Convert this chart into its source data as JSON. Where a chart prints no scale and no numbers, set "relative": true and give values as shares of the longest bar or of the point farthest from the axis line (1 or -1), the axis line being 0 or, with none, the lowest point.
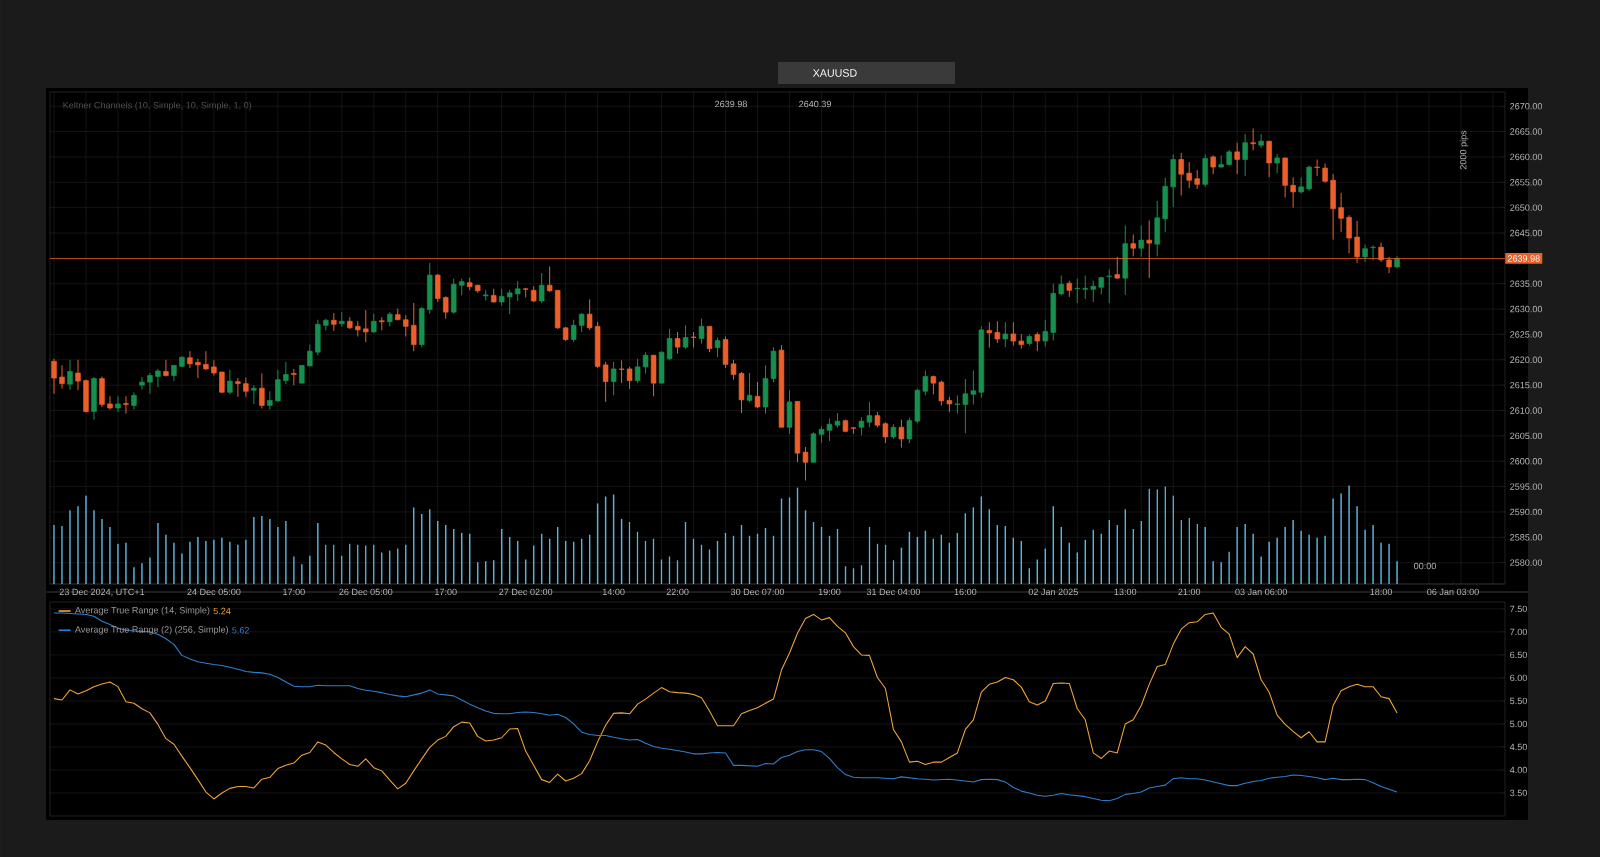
{
  "chart_data": [
    {
      "type": "candlestick",
      "title": "XAUUSD",
      "categories": [
        null,
        null,
        null,
        null,
        null,
        null,
        "23 Dec 2024, UTC+1",
        null,
        null,
        null,
        null,
        null,
        null,
        null,
        null,
        null,
        null,
        null,
        null,
        null,
        "24 Dec 05:00",
        null,
        null,
        null,
        null,
        null,
        null,
        null,
        null,
        null,
        "17:00",
        null,
        null,
        null,
        null,
        null,
        null,
        null,
        null,
        "26 Dec 05:00",
        null,
        null,
        null,
        null,
        null,
        null,
        null,
        null,
        null,
        "17:00",
        null,
        null,
        null,
        null,
        null,
        null,
        null,
        null,
        null,
        "27 Dec 02:00",
        null,
        null,
        null,
        null,
        null,
        null,
        null,
        null,
        null,
        null,
        "14:00",
        null,
        null,
        null,
        null,
        null,
        null,
        null,
        "22:00",
        null,
        null,
        null,
        null,
        null,
        null,
        null,
        null,
        null,
        "30 Dec 07:00",
        null,
        null,
        null,
        null,
        null,
        null,
        null,
        null,
        "19:00",
        null,
        null,
        null,
        null,
        null,
        null,
        null,
        "31 Dec 04:00",
        null,
        null,
        null,
        null,
        null,
        null,
        null,
        null,
        "16:00",
        null,
        null,
        null,
        null,
        null,
        null,
        null,
        null,
        null,
        null,
        "02 Jan 2025",
        null,
        null,
        null,
        null,
        null,
        null,
        null,
        null,
        "13:00",
        null,
        null,
        null,
        null,
        null,
        null,
        null,
        "21:00",
        null,
        null,
        null,
        null,
        null,
        null,
        null,
        null,
        "03 Jan 06:00",
        null,
        null,
        null,
        null,
        null,
        null,
        null,
        null,
        null,
        null,
        null,
        null,
        null,
        null,
        "18:00",
        null,
        null,
        null,
        null,
        null,
        null,
        null,
        null,
        "06 Jan 03:00",
        null,
        null,
        null,
        null,
        null,
        null
      ],
      "ohlc": [
        [
          2619.7,
          2620.2,
          2613.3,
          2616.4
        ],
        [
          2616.6,
          2618.9,
          2614.3,
          2615.3
        ],
        [
          2615.2,
          2620.0,
          2614.1,
          2617.7
        ],
        [
          2617.4,
          2620.0,
          2614.0,
          2615.8
        ],
        [
          2615.9,
          2616.1,
          2609.6,
          2609.8
        ],
        [
          2609.8,
          2616.6,
          2608.2,
          2616.3
        ],
        [
          2616.3,
          2616.7,
          2610.7,
          2611.2
        ],
        [
          2611.3,
          2612.8,
          2610.2,
          2610.5
        ],
        [
          2610.5,
          2612.8,
          2609.7,
          2611.3
        ],
        [
          2611.4,
          2612.8,
          2609.4,
          2611.2
        ],
        [
          2611.0,
          2613.6,
          2610.2,
          2613.0
        ],
        [
          2615.0,
          2616.6,
          2614.1,
          2615.6
        ],
        [
          2615.6,
          2617.4,
          2613.3,
          2616.9
        ],
        [
          2616.7,
          2618.2,
          2614.6,
          2617.8
        ],
        [
          2617.7,
          2620.0,
          2616.7,
          2616.9
        ],
        [
          2616.9,
          2618.9,
          2615.8,
          2618.9
        ],
        [
          2618.7,
          2620.7,
          2618.6,
          2620.5
        ],
        [
          2620.4,
          2621.7,
          2618.4,
          2619.2
        ],
        [
          2619.5,
          2620.2,
          2616.4,
          2619.0
        ],
        [
          2619.1,
          2621.7,
          2618.0,
          2618.2
        ],
        [
          2618.6,
          2619.9,
          2616.9,
          2617.4
        ],
        [
          2617.6,
          2617.6,
          2613.4,
          2613.6
        ],
        [
          2613.6,
          2618.0,
          2613.2,
          2615.8
        ],
        [
          2615.7,
          2616.4,
          2612.7,
          2615.3
        ],
        [
          2615.3,
          2616.5,
          2612.7,
          2613.8
        ],
        [
          2614.0,
          2615.0,
          2611.3,
          2614.4
        ],
        [
          2614.4,
          2617.3,
          2610.4,
          2611.0
        ],
        [
          2611.0,
          2613.8,
          2610.2,
          2612.0
        ],
        [
          2611.9,
          2618.0,
          2611.7,
          2616.1
        ],
        [
          2615.9,
          2619.6,
          2615.2,
          2617.1
        ],
        [
          2617.3,
          2618.2,
          2615.0,
          2617.1
        ],
        [
          2615.4,
          2618.9,
          2615.3,
          2618.9
        ],
        [
          2618.8,
          2623.0,
          2618.7,
          2621.7
        ],
        [
          2621.5,
          2627.9,
          2620.9,
          2627.0
        ],
        [
          2626.8,
          2628.1,
          2625.8,
          2627.8
        ],
        [
          2627.8,
          2629.2,
          2625.7,
          2627.0
        ],
        [
          2627.1,
          2629.4,
          2626.5,
          2627.6
        ],
        [
          2627.6,
          2628.4,
          2626.1,
          2626.3
        ],
        [
          2626.6,
          2627.6,
          2624.6,
          2625.9
        ],
        [
          2626.1,
          2629.8,
          2623.5,
          2625.5
        ],
        [
          2625.5,
          2629.1,
          2625.3,
          2627.6
        ],
        [
          2627.7,
          2628.4,
          2625.8,
          2627.5
        ],
        [
          2627.5,
          2629.4,
          2626.6,
          2629.0
        ],
        [
          2628.9,
          2630.1,
          2627.8,
          2627.9
        ],
        [
          2627.9,
          2628.8,
          2624.6,
          2626.6
        ],
        [
          2626.8,
          2631.2,
          2621.7,
          2623.0
        ],
        [
          2623.0,
          2630.4,
          2622.5,
          2630.1
        ],
        [
          2629.9,
          2639.1,
          2629.1,
          2636.7
        ],
        [
          2636.7,
          2636.9,
          2631.4,
          2632.1
        ],
        [
          2632.3,
          2632.5,
          2628.1,
          2629.4
        ],
        [
          2629.4,
          2636.0,
          2629.1,
          2634.9
        ],
        [
          2634.7,
          2636.0,
          2632.7,
          2635.4
        ],
        [
          2635.2,
          2636.2,
          2633.7,
          2634.4
        ],
        [
          2634.7,
          2634.8,
          2633.2,
          2633.6
        ],
        [
          2632.6,
          2633.8,
          2631.7,
          2632.8
        ],
        [
          2632.7,
          2634.0,
          2631.3,
          2631.4
        ],
        [
          2631.4,
          2634.0,
          2630.7,
          2632.5
        ],
        [
          2632.4,
          2633.8,
          2629.0,
          2633.2
        ],
        [
          2633.0,
          2635.5,
          2631.6,
          2634.0
        ],
        [
          2634.0,
          2634.2,
          2632.3,
          2633.9
        ],
        [
          2633.7,
          2634.5,
          2631.4,
          2631.6
        ],
        [
          2631.6,
          2637.1,
          2631.2,
          2634.7
        ],
        [
          2634.7,
          2638.4,
          2633.4,
          2633.6
        ],
        [
          2633.7,
          2633.7,
          2626.1,
          2626.3
        ],
        [
          2626.3,
          2626.5,
          2623.7,
          2624.0
        ],
        [
          2624.0,
          2627.9,
          2623.5,
          2626.8
        ],
        [
          2626.8,
          2629.2,
          2625.5,
          2629.0
        ],
        [
          2629.0,
          2631.9,
          2625.9,
          2626.3
        ],
        [
          2626.6,
          2627.5,
          2618.4,
          2618.7
        ],
        [
          2619.0,
          2619.6,
          2611.7,
          2615.7
        ],
        [
          2615.7,
          2619.6,
          2613.0,
          2618.2
        ],
        [
          2618.2,
          2619.9,
          2615.4,
          2618.1
        ],
        [
          2618.2,
          2618.6,
          2614.3,
          2615.9
        ],
        [
          2615.9,
          2620.2,
          2615.4,
          2618.6
        ],
        [
          2618.6,
          2621.5,
          2617.3,
          2620.9
        ],
        [
          2620.9,
          2620.9,
          2612.8,
          2615.4
        ],
        [
          2615.4,
          2621.7,
          2615.3,
          2621.5
        ],
        [
          2620.2,
          2626.1,
          2619.9,
          2624.2
        ],
        [
          2624.2,
          2625.5,
          2621.2,
          2622.5
        ],
        [
          2622.5,
          2626.8,
          2622.2,
          2624.4
        ],
        [
          2624.5,
          2625.5,
          2622.4,
          2624.4
        ],
        [
          2624.2,
          2628.1,
          2623.2,
          2626.6
        ],
        [
          2626.6,
          2626.6,
          2621.5,
          2622.2
        ],
        [
          2622.4,
          2624.4,
          2620.5,
          2623.8
        ],
        [
          2624.0,
          2624.6,
          2618.4,
          2619.1
        ],
        [
          2619.2,
          2620.0,
          2616.1,
          2617.1
        ],
        [
          2617.3,
          2617.6,
          2609.5,
          2612.1
        ],
        [
          2612.0,
          2617.4,
          2611.7,
          2613.0
        ],
        [
          2612.8,
          2615.6,
          2610.5,
          2610.7
        ],
        [
          2610.7,
          2618.9,
          2609.4,
          2616.3
        ],
        [
          2616.3,
          2622.5,
          2615.6,
          2621.7
        ],
        [
          2621.9,
          2622.9,
          2606.7,
          2606.7
        ],
        [
          2606.7,
          2614.0,
          2605.4,
          2611.7
        ],
        [
          2611.8,
          2611.8,
          2599.8,
          2601.6
        ],
        [
          2601.8,
          2602.8,
          2596.2,
          2599.8
        ],
        [
          2599.8,
          2605.7,
          2599.8,
          2605.4
        ],
        [
          2605.3,
          2606.9,
          2603.6,
          2606.3
        ],
        [
          2606.1,
          2608.4,
          2604.0,
          2607.3
        ],
        [
          2607.1,
          2609.5,
          2606.6,
          2607.9
        ],
        [
          2608.0,
          2608.2,
          2605.7,
          2605.9
        ],
        [
          2606.6,
          2606.7,
          2605.4,
          2606.5
        ],
        [
          2606.7,
          2608.7,
          2605.1,
          2607.9
        ],
        [
          2607.7,
          2611.7,
          2606.7,
          2609.0
        ],
        [
          2609.0,
          2609.7,
          2606.7,
          2607.1
        ],
        [
          2607.4,
          2607.7,
          2603.6,
          2604.8
        ],
        [
          2604.8,
          2607.3,
          2604.4,
          2606.7
        ],
        [
          2606.7,
          2608.2,
          2602.7,
          2604.4
        ],
        [
          2604.4,
          2608.6,
          2603.6,
          2608.0
        ],
        [
          2607.9,
          2614.3,
          2607.5,
          2614.0
        ],
        [
          2613.8,
          2617.9,
          2613.0,
          2616.7
        ],
        [
          2616.7,
          2616.9,
          2613.2,
          2615.4
        ],
        [
          2615.6,
          2615.9,
          2611.0,
          2611.9
        ],
        [
          2612.0,
          2612.7,
          2609.7,
          2611.3
        ],
        [
          2611.2,
          2613.0,
          2609.4,
          2611.3
        ],
        [
          2611.2,
          2616.2,
          2605.5,
          2613.3
        ],
        [
          2613.2,
          2617.9,
          2611.2,
          2613.9
        ],
        [
          2613.6,
          2626.6,
          2612.5,
          2625.9
        ],
        [
          2625.8,
          2627.4,
          2622.4,
          2625.3
        ],
        [
          2625.4,
          2627.6,
          2623.3,
          2624.1
        ],
        [
          2624.1,
          2627.4,
          2622.5,
          2625.1
        ],
        [
          2625.1,
          2627.4,
          2622.8,
          2623.7
        ],
        [
          2623.7,
          2625.1,
          2622.2,
          2623.0
        ],
        [
          2623.2,
          2625.0,
          2622.8,
          2624.6
        ],
        [
          2625.0,
          2625.4,
          2621.7,
          2623.7
        ],
        [
          2623.7,
          2627.9,
          2622.6,
          2625.6
        ],
        [
          2625.4,
          2635.0,
          2623.8,
          2633.1
        ],
        [
          2633.0,
          2636.6,
          2632.7,
          2634.9
        ],
        [
          2635.1,
          2635.6,
          2632.4,
          2633.7
        ],
        [
          2634.0,
          2636.0,
          2631.2,
          2634.1
        ],
        [
          2633.9,
          2636.6,
          2632.0,
          2634.1
        ],
        [
          2633.9,
          2635.6,
          2631.4,
          2634.5
        ],
        [
          2634.3,
          2636.4,
          2632.9,
          2636.2
        ],
        [
          2636.4,
          2637.8,
          2631.2,
          2636.5
        ],
        [
          2636.8,
          2640.3,
          2636.0,
          2636.1
        ],
        [
          2636.1,
          2646.5,
          2632.8,
          2642.9
        ],
        [
          2642.9,
          2644.7,
          2640.4,
          2642.0
        ],
        [
          2642.0,
          2646.5,
          2640.3,
          2643.6
        ],
        [
          2643.6,
          2647.5,
          2636.1,
          2643.0
        ],
        [
          2642.8,
          2651.3,
          2640.4,
          2648.0
        ],
        [
          2647.8,
          2655.9,
          2645.2,
          2654.2
        ],
        [
          2654.1,
          2660.5,
          2650.1,
          2659.5
        ],
        [
          2659.5,
          2660.8,
          2652.4,
          2656.6
        ],
        [
          2656.8,
          2659.0,
          2653.9,
          2655.4
        ],
        [
          2655.7,
          2657.4,
          2653.7,
          2654.6
        ],
        [
          2654.6,
          2660.5,
          2654.1,
          2659.7
        ],
        [
          2660.0,
          2660.3,
          2656.6,
          2658.0
        ],
        [
          2658.0,
          2660.3,
          2657.9,
          2658.5
        ],
        [
          2658.5,
          2661.4,
          2658.3,
          2661.0
        ],
        [
          2661.0,
          2662.8,
          2656.6,
          2659.5
        ],
        [
          2659.5,
          2664.5,
          2656.2,
          2662.8
        ],
        [
          2662.8,
          2665.6,
          2661.3,
          2662.6
        ],
        [
          2662.3,
          2664.5,
          2661.8,
          2663.1
        ],
        [
          2663.1,
          2663.1,
          2656.0,
          2658.8
        ],
        [
          2658.8,
          2660.6,
          2656.8,
          2659.8
        ],
        [
          2659.8,
          2659.8,
          2652.0,
          2654.4
        ],
        [
          2654.4,
          2656.0,
          2650.0,
          2653.1
        ],
        [
          2653.1,
          2656.0,
          2652.8,
          2654.1
        ],
        [
          2653.7,
          2658.3,
          2653.3,
          2658.0
        ],
        [
          2658.0,
          2659.5,
          2656.2,
          2657.9
        ],
        [
          2657.8,
          2658.7,
          2654.9,
          2655.2
        ],
        [
          2655.4,
          2656.6,
          2643.7,
          2649.8
        ],
        [
          2650.0,
          2652.9,
          2645.2,
          2647.9
        ],
        [
          2648.1,
          2648.5,
          2641.0,
          2644.0
        ],
        [
          2644.2,
          2647.4,
          2639.1,
          2640.3
        ],
        [
          2640.3,
          2642.7,
          2639.3,
          2641.9
        ],
        [
          2642.1,
          2642.6,
          2639.6,
          2642.2
        ],
        [
          2642.2,
          2643.1,
          2639.3,
          2639.7
        ],
        [
          2639.7,
          2640.3,
          2637.1,
          2638.3
        ],
        [
          2638.3,
          2640.4,
          2638.1,
          2640.0
        ],
        null,
        null,
        null,
        null,
        null,
        null,
        null,
        null,
        null,
        null,
        null,
        null,
        null
      ],
      "ylim": [
        2575.8,
        2672.8
      ],
      "yticks": [
        {
          "value": 2580,
          "label": "2580.00"
        },
        {
          "value": 2585,
          "label": "2585.00"
        },
        {
          "value": 2590,
          "label": "2590.00"
        },
        {
          "value": 2595,
          "label": "2595.00"
        },
        {
          "value": 2600,
          "label": "2600.00"
        },
        {
          "value": 2605,
          "label": "2605.00"
        },
        {
          "value": 2610,
          "label": "2610.00"
        },
        {
          "value": 2615,
          "label": "2615.00"
        },
        {
          "value": 2620,
          "label": "2620.00"
        },
        {
          "value": 2625,
          "label": "2625.00"
        },
        {
          "value": 2630,
          "label": "2630.00"
        },
        {
          "value": 2635,
          "label": "2635.00"
        },
        {
          "value": 2645,
          "label": "2645.00"
        },
        {
          "value": 2650,
          "label": "2650.00"
        },
        {
          "value": 2655,
          "label": "2655.00"
        },
        {
          "value": 2660,
          "label": "2660.00"
        },
        {
          "value": 2665,
          "label": "2665.00"
        },
        {
          "value": 2670,
          "label": "2670.00"
        }
      ],
      "grid": true,
      "ref_lines": [
        {
          "axis": "y",
          "value": 2639.98,
          "label": "2639.98",
          "color": "#e8602c"
        }
      ],
      "annotations": [
        "Keltner Channels (10, Simple, 10, Simple, 1, 0)",
        "2639.98",
        "2640.39",
        "2000 pips",
        "00:00"
      ]
    },
    {
      "type": "bar",
      "relative": true,
      "color": "#5ab4e0",
      "categories": [
        null,
        null,
        null,
        null,
        null,
        null,
        null,
        null,
        null,
        null,
        null,
        null,
        null,
        null,
        null,
        null,
        null,
        null,
        null,
        null,
        null,
        null,
        null,
        null,
        null,
        null,
        null,
        null,
        null,
        null,
        null,
        null,
        null,
        null,
        null,
        null,
        null,
        null,
        null,
        null,
        null,
        null,
        null,
        null,
        null,
        null,
        null,
        null,
        null,
        null,
        null,
        null,
        null,
        null,
        null,
        null,
        null,
        null,
        null,
        null,
        null,
        null,
        null,
        null,
        null,
        null,
        null,
        null,
        null,
        null,
        null,
        null,
        null,
        null,
        null,
        null,
        null,
        null,
        null,
        null,
        null,
        null,
        null,
        null,
        null,
        null,
        null,
        null,
        null,
        null,
        null,
        null,
        null,
        null,
        null,
        null,
        null,
        null,
        null,
        null,
        null,
        null,
        null,
        null,
        null,
        null,
        null,
        null,
        null,
        null,
        null,
        null,
        null,
        null,
        null,
        null,
        null,
        null,
        null,
        null,
        null,
        null,
        null,
        null,
        null,
        null,
        null,
        null,
        null,
        null,
        null,
        null,
        null,
        null,
        null,
        null,
        null,
        null,
        null,
        null,
        null,
        null,
        null,
        null,
        null,
        null,
        null,
        null,
        null,
        null,
        null,
        null,
        null,
        null,
        null,
        null,
        null,
        null,
        null,
        null,
        null,
        null,
        null,
        null,
        null,
        null,
        null,
        null,
        null,
        null,
        null,
        null,
        null,
        null,
        null,
        null,
        null,
        null,
        null,
        null,
        null,
        null
      ],
      "values": [
        0.6,
        0.59,
        0.75,
        0.79,
        0.9,
        0.75,
        0.66,
        0.58,
        0.41,
        0.42,
        0.17,
        0.21,
        0.27,
        0.62,
        0.5,
        0.42,
        0.31,
        0.43,
        0.48,
        0.44,
        0.45,
        0.47,
        0.43,
        0.4,
        0.45,
        0.68,
        0.69,
        0.66,
        0.58,
        0.64,
        0.28,
        0.2,
        0.29,
        0.62,
        0.4,
        0.4,
        0.29,
        0.41,
        0.4,
        0.39,
        0.4,
        0.32,
        0.34,
        0.36,
        0.4,
        0.78,
        0.71,
        0.76,
        0.64,
        0.6,
        0.56,
        0.52,
        0.51,
        0.22,
        0.23,
        0.24,
        0.56,
        0.48,
        0.44,
        0.25,
        0.39,
        0.51,
        0.46,
        0.58,
        0.44,
        0.43,
        0.46,
        0.5,
        0.82,
        0.89,
        0.91,
        0.66,
        0.63,
        0.53,
        0.44,
        0.46,
        0.25,
        0.28,
        0.24,
        0.63,
        0.46,
        0.4,
        0.35,
        0.44,
        0.52,
        0.49,
        0.6,
        0.49,
        0.51,
        0.57,
        0.49,
        0.87,
        0.88,
        0.98,
        0.75,
        0.63,
        0.58,
        0.49,
        0.56,
        0.18,
        0.16,
        0.19,
        0.58,
        0.41,
        0.4,
        0.24,
        0.37,
        0.53,
        0.48,
        0.54,
        0.46,
        0.5,
        0.42,
        0.52,
        0.72,
        0.78,
        0.89,
        0.76,
        0.6,
        0.59,
        0.47,
        0.44,
        0.16,
        0.25,
        0.36,
        0.79,
        0.58,
        0.42,
        0.32,
        0.45,
        0.55,
        0.51,
        0.65,
        0.6,
        0.76,
        0.56,
        0.64,
        0.97,
        0.96,
        0.99,
        0.9,
        0.65,
        0.67,
        0.61,
        0.58,
        0.23,
        0.22,
        0.33,
        0.58,
        0.61,
        0.51,
        0.28,
        0.43,
        0.47,
        0.58,
        0.65,
        0.54,
        0.5,
        0.47,
        0.49,
        0.87,
        0.92,
        1.0,
        0.79,
        0.55,
        0.6,
        0.42,
        0.41,
        0.23,
        null,
        null,
        null,
        null,
        null,
        null,
        null,
        null,
        null,
        null,
        null,
        null,
        null
      ]
    },
    {
      "type": "line",
      "categories": [
        null,
        null,
        null,
        null,
        null,
        null,
        null,
        null,
        null,
        null,
        null,
        null,
        null,
        null,
        null,
        null,
        null,
        null,
        null,
        null,
        null,
        null,
        null,
        null,
        null,
        null,
        null,
        null,
        null,
        null,
        null,
        null,
        null,
        null,
        null,
        null,
        null,
        null,
        null,
        null,
        null,
        null,
        null,
        null,
        null,
        null,
        null,
        null,
        null,
        null,
        null,
        null,
        null,
        null,
        null,
        null,
        null,
        null,
        null,
        null,
        null,
        null,
        null,
        null,
        null,
        null,
        null,
        null,
        null,
        null,
        null,
        null,
        null,
        null,
        null,
        null,
        null,
        null,
        null,
        null,
        null,
        null,
        null,
        null,
        null,
        null,
        null,
        null,
        null,
        null,
        null,
        null,
        null,
        null,
        null,
        null,
        null,
        null,
        null,
        null,
        null,
        null,
        null,
        null,
        null,
        null,
        null,
        null,
        null,
        null,
        null,
        null,
        null,
        null,
        null,
        null,
        null,
        null,
        null,
        null,
        null,
        null,
        null,
        null,
        null,
        null,
        null,
        null,
        null,
        null,
        null,
        null,
        null,
        null,
        null,
        null,
        null,
        null,
        null,
        null,
        null,
        null,
        null,
        null,
        null,
        null,
        null,
        null,
        null,
        null,
        null,
        null,
        null,
        null,
        null,
        null,
        null,
        null,
        null,
        null,
        null,
        null,
        null,
        null,
        null,
        null,
        null,
        null,
        null,
        null,
        null,
        null,
        null,
        null,
        null,
        null,
        null,
        null,
        null,
        null,
        null,
        null
      ],
      "series": [
        {
          "name": "Average True Range (14, Simple)",
          "color": "#f0a53a",
          "values": [
            5.55,
            5.52,
            5.74,
            5.65,
            5.72,
            5.81,
            5.87,
            5.91,
            5.81,
            5.48,
            5.45,
            5.33,
            5.24,
            4.99,
            4.68,
            4.56,
            4.3,
            4.05,
            3.79,
            3.52,
            3.37,
            3.5,
            3.6,
            3.64,
            3.64,
            3.61,
            3.8,
            3.84,
            4.03,
            4.1,
            4.15,
            4.32,
            4.38,
            4.61,
            4.54,
            4.38,
            4.24,
            4.12,
            4.08,
            4.24,
            4.05,
            3.98,
            3.78,
            3.59,
            3.71,
            3.98,
            4.24,
            4.49,
            4.65,
            4.73,
            4.94,
            5.04,
            5.02,
            4.73,
            4.63,
            4.65,
            4.7,
            4.89,
            4.9,
            4.41,
            4.1,
            3.79,
            3.73,
            3.91,
            3.76,
            3.82,
            3.92,
            4.2,
            4.61,
            4.97,
            5.23,
            5.24,
            5.22,
            5.43,
            5.54,
            5.67,
            5.79,
            5.7,
            5.68,
            5.67,
            5.64,
            5.57,
            5.28,
            4.96,
            4.96,
            4.96,
            5.22,
            5.29,
            5.35,
            5.45,
            5.54,
            6.17,
            6.54,
            6.97,
            7.29,
            7.38,
            7.26,
            7.31,
            7.12,
            6.98,
            6.68,
            6.5,
            6.49,
            6.01,
            5.77,
            4.88,
            4.61,
            4.17,
            4.19,
            4.12,
            4.17,
            4.17,
            4.27,
            4.37,
            4.88,
            5.09,
            5.69,
            5.86,
            5.91,
            6.01,
            5.96,
            5.8,
            5.48,
            5.41,
            5.5,
            5.88,
            5.89,
            5.88,
            5.33,
            5.09,
            4.37,
            4.25,
            4.41,
            4.37,
            5.0,
            5.09,
            5.4,
            5.86,
            6.25,
            6.29,
            6.73,
            7.06,
            7.2,
            7.22,
            7.38,
            7.41,
            7.1,
            6.95,
            6.44,
            6.68,
            6.52,
            5.96,
            5.69,
            5.19,
            4.99,
            4.84,
            4.7,
            4.83,
            4.61,
            4.61,
            5.4,
            5.72,
            5.81,
            5.86,
            5.81,
            5.81,
            5.59,
            5.55,
            5.24,
            null,
            null,
            null,
            null,
            null,
            null,
            null,
            null,
            null,
            null,
            null,
            null,
            null
          ]
        },
        {
          "name": "Average True Range (2) (256, Simple)",
          "color": "#2f7fd0",
          "values": [
            7.41,
            7.41,
            7.4,
            7.39,
            7.38,
            7.34,
            7.23,
            7.16,
            7.08,
            7.04,
            7.02,
            7.01,
            7.0,
            6.95,
            6.85,
            6.73,
            6.49,
            6.41,
            6.35,
            6.32,
            6.29,
            6.27,
            6.23,
            6.19,
            6.14,
            6.12,
            6.11,
            6.08,
            6.01,
            5.91,
            5.82,
            5.81,
            5.81,
            5.84,
            5.83,
            5.83,
            5.83,
            5.83,
            5.77,
            5.73,
            5.71,
            5.68,
            5.64,
            5.61,
            5.59,
            5.63,
            5.67,
            5.74,
            5.65,
            5.63,
            5.61,
            5.52,
            5.43,
            5.35,
            5.28,
            5.23,
            5.22,
            5.22,
            5.25,
            5.26,
            5.25,
            5.22,
            5.19,
            5.21,
            5.14,
            5.0,
            4.82,
            4.77,
            4.75,
            4.75,
            4.71,
            4.68,
            4.65,
            4.66,
            4.58,
            4.51,
            4.47,
            4.45,
            4.42,
            4.39,
            4.35,
            4.35,
            4.37,
            4.38,
            4.37,
            4.1,
            4.1,
            4.09,
            4.08,
            4.14,
            4.13,
            4.27,
            4.32,
            4.4,
            4.44,
            4.44,
            4.4,
            4.25,
            4.05,
            3.9,
            3.84,
            3.83,
            3.83,
            3.83,
            3.82,
            3.81,
            3.85,
            3.83,
            3.81,
            3.8,
            3.78,
            3.79,
            3.8,
            3.78,
            3.76,
            3.74,
            3.79,
            3.8,
            3.79,
            3.74,
            3.62,
            3.54,
            3.5,
            3.45,
            3.43,
            3.45,
            3.49,
            3.46,
            3.44,
            3.42,
            3.38,
            3.34,
            3.33,
            3.38,
            3.47,
            3.49,
            3.52,
            3.61,
            3.64,
            3.67,
            3.81,
            3.83,
            3.81,
            3.81,
            3.78,
            3.74,
            3.7,
            3.66,
            3.66,
            3.71,
            3.75,
            3.77,
            3.82,
            3.84,
            3.86,
            3.89,
            3.88,
            3.86,
            3.83,
            3.79,
            3.82,
            3.79,
            3.79,
            3.8,
            3.79,
            3.72,
            3.64,
            3.58,
            3.52,
            null,
            null,
            null,
            null,
            null,
            null,
            null,
            null,
            null,
            null,
            null,
            null,
            null
          ]
        }
      ],
      "ylim": [
        3.0,
        7.65
      ],
      "yticks": [
        {
          "value": 3.5,
          "label": "3.50"
        },
        {
          "value": 4.0,
          "label": "4.00"
        },
        {
          "value": 4.5,
          "label": "4.50"
        },
        {
          "value": 5.0,
          "label": "5.00"
        },
        {
          "value": 5.5,
          "label": "5.50"
        },
        {
          "value": 6.0,
          "label": "6.00"
        },
        {
          "value": 6.5,
          "label": "6.50"
        },
        {
          "value": 7.0,
          "label": "7.00"
        },
        {
          "value": 7.5,
          "label": "7.50"
        }
      ],
      "grid": true,
      "tick_labels": "y",
      "legend": "top left",
      "annotations": [
        "5.24",
        "5.62"
      ]
    }
  ]
}
